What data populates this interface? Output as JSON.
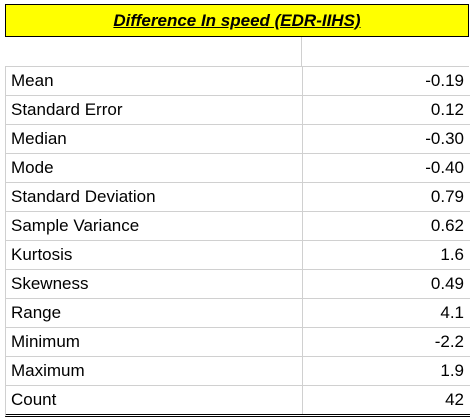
{
  "table": {
    "title": "Difference In speed (EDR-IIHS)",
    "rows": [
      [
        "Mean",
        "-0.19"
      ],
      [
        "Standard Error",
        "0.12"
      ],
      [
        "Median",
        "-0.30"
      ],
      [
        "Mode",
        "-0.40"
      ],
      [
        "Standard Deviation",
        "0.79"
      ],
      [
        "Sample Variance",
        "0.62"
      ],
      [
        "Kurtosis",
        "1.6"
      ],
      [
        "Skewness",
        "0.49"
      ],
      [
        "Range",
        "4.1"
      ],
      [
        "Minimum",
        "-2.2"
      ],
      [
        "Maximum",
        "1.9"
      ],
      [
        "Count",
        "42"
      ]
    ]
  }
}
